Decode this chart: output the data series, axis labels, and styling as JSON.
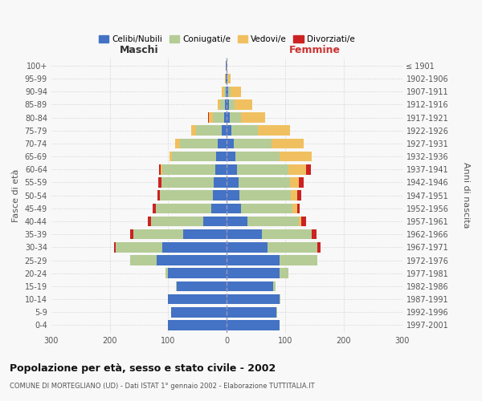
{
  "age_groups": [
    "0-4",
    "5-9",
    "10-14",
    "15-19",
    "20-24",
    "25-29",
    "30-34",
    "35-39",
    "40-44",
    "45-49",
    "50-54",
    "55-59",
    "60-64",
    "65-69",
    "70-74",
    "75-79",
    "80-84",
    "85-89",
    "90-94",
    "95-99",
    "100+"
  ],
  "birth_years": [
    "1997-2001",
    "1992-1996",
    "1987-1991",
    "1982-1986",
    "1977-1981",
    "1972-1976",
    "1967-1971",
    "1962-1966",
    "1957-1961",
    "1952-1956",
    "1947-1951",
    "1942-1946",
    "1937-1941",
    "1932-1936",
    "1927-1931",
    "1922-1926",
    "1917-1921",
    "1912-1916",
    "1907-1911",
    "1902-1906",
    "≤ 1901"
  ],
  "maschi": {
    "celibi": [
      100,
      95,
      100,
      85,
      100,
      120,
      110,
      75,
      40,
      26,
      24,
      22,
      20,
      18,
      15,
      8,
      5,
      3,
      2,
      1,
      1
    ],
    "coniugati": [
      0,
      0,
      1,
      2,
      5,
      45,
      80,
      85,
      90,
      95,
      90,
      90,
      90,
      75,
      65,
      45,
      18,
      8,
      3,
      1,
      0
    ],
    "vedovi": [
      0,
      0,
      0,
      0,
      0,
      0,
      0,
      0,
      0,
      0,
      0,
      0,
      3,
      5,
      8,
      8,
      8,
      5,
      3,
      1,
      0
    ],
    "divorziati": [
      0,
      0,
      0,
      0,
      0,
      0,
      2,
      5,
      5,
      5,
      5,
      5,
      2,
      0,
      0,
      0,
      1,
      0,
      0,
      0,
      0
    ]
  },
  "femmine": {
    "nubili": [
      90,
      85,
      90,
      80,
      90,
      90,
      70,
      60,
      35,
      24,
      22,
      20,
      18,
      15,
      12,
      8,
      5,
      4,
      2,
      1,
      0
    ],
    "coniugate": [
      0,
      1,
      2,
      4,
      15,
      65,
      85,
      85,
      88,
      88,
      88,
      88,
      88,
      75,
      65,
      45,
      20,
      10,
      5,
      1,
      0
    ],
    "vedove": [
      0,
      0,
      0,
      0,
      0,
      0,
      0,
      0,
      5,
      8,
      10,
      15,
      30,
      55,
      55,
      55,
      40,
      30,
      18,
      4,
      1
    ],
    "divorziate": [
      0,
      0,
      0,
      0,
      0,
      0,
      5,
      8,
      8,
      5,
      8,
      8,
      8,
      0,
      0,
      0,
      1,
      0,
      0,
      0,
      0
    ]
  },
  "colors": {
    "celibi_nubili": "#4472C4",
    "coniugati": "#b5cc96",
    "vedovi": "#f0c060",
    "divorziati": "#cc2222"
  },
  "title": "Popolazione per età, sesso e stato civile - 2002",
  "subtitle": "COMUNE DI MORTEGLIANO (UD) - Dati ISTAT 1° gennaio 2002 - Elaborazione TUTTITALIA.IT",
  "xlabel_left": "Maschi",
  "xlabel_right": "Femmine",
  "ylabel_left": "Fasce di età",
  "ylabel_right": "Anni di nascita",
  "xlim": 300,
  "background_color": "#f8f8f8",
  "grid_color": "#cccccc",
  "legend_labels": [
    "Celibi/Nubili",
    "Coniugati/e",
    "Vedovi/e",
    "Divorziati/e"
  ]
}
